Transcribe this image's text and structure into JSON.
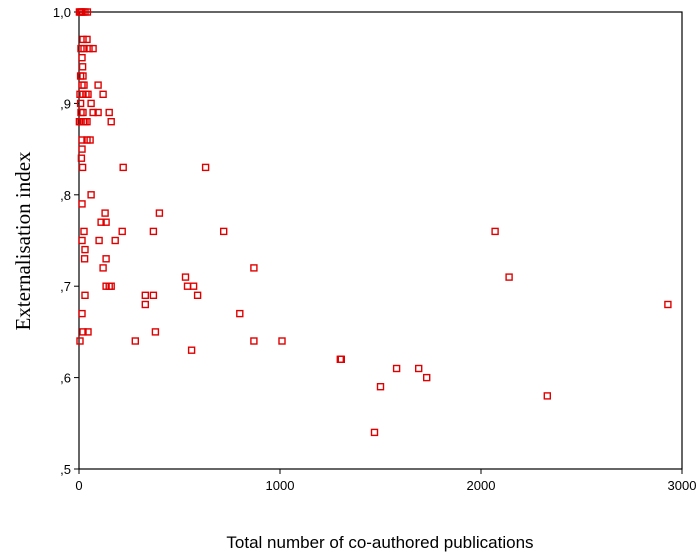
{
  "chart_data": {
    "type": "scatter",
    "xlabel": "Total number of co-authored publications",
    "ylabel": "Externalisation index",
    "xlim": [
      0,
      3000
    ],
    "ylim": [
      0.5,
      1.0
    ],
    "xticks": [
      0,
      1000,
      2000,
      3000
    ],
    "xtick_labels": [
      "0",
      "1000",
      "2000",
      "3000"
    ],
    "yticks": [
      0.5,
      0.6,
      0.7,
      0.8,
      0.9,
      1.0
    ],
    "ytick_labels": [
      ",5",
      ",6",
      ",7",
      ",8",
      ",9",
      "1,0"
    ],
    "grid": false,
    "marker": "open-square",
    "marker_color": "#e00000",
    "points": [
      [
        2,
        1.0
      ],
      [
        6,
        1.0
      ],
      [
        12,
        1.0
      ],
      [
        20,
        1.0
      ],
      [
        30,
        1.0
      ],
      [
        42,
        1.0
      ],
      [
        20,
        0.97
      ],
      [
        40,
        0.97
      ],
      [
        10,
        0.96
      ],
      [
        25,
        0.96
      ],
      [
        50,
        0.96
      ],
      [
        70,
        0.96
      ],
      [
        15,
        0.95
      ],
      [
        18,
        0.94
      ],
      [
        8,
        0.93
      ],
      [
        20,
        0.93
      ],
      [
        15,
        0.92
      ],
      [
        25,
        0.92
      ],
      [
        95,
        0.92
      ],
      [
        5,
        0.91
      ],
      [
        20,
        0.91
      ],
      [
        35,
        0.91
      ],
      [
        45,
        0.91
      ],
      [
        120,
        0.91
      ],
      [
        8,
        0.9
      ],
      [
        60,
        0.9
      ],
      [
        10,
        0.89
      ],
      [
        20,
        0.89
      ],
      [
        70,
        0.89
      ],
      [
        95,
        0.89
      ],
      [
        150,
        0.89
      ],
      [
        2,
        0.88
      ],
      [
        10,
        0.88
      ],
      [
        22,
        0.88
      ],
      [
        30,
        0.88
      ],
      [
        40,
        0.88
      ],
      [
        160,
        0.88
      ],
      [
        15,
        0.86
      ],
      [
        40,
        0.86
      ],
      [
        55,
        0.86
      ],
      [
        15,
        0.85
      ],
      [
        12,
        0.84
      ],
      [
        18,
        0.83
      ],
      [
        220,
        0.83
      ],
      [
        630,
        0.83
      ],
      [
        60,
        0.8
      ],
      [
        15,
        0.79
      ],
      [
        130,
        0.78
      ],
      [
        400,
        0.78
      ],
      [
        110,
        0.77
      ],
      [
        135,
        0.77
      ],
      [
        25,
        0.76
      ],
      [
        215,
        0.76
      ],
      [
        370,
        0.76
      ],
      [
        720,
        0.76
      ],
      [
        2070,
        0.76
      ],
      [
        15,
        0.75
      ],
      [
        100,
        0.75
      ],
      [
        180,
        0.75
      ],
      [
        30,
        0.74
      ],
      [
        28,
        0.73
      ],
      [
        135,
        0.73
      ],
      [
        120,
        0.72
      ],
      [
        870,
        0.72
      ],
      [
        530,
        0.71
      ],
      [
        2140,
        0.71
      ],
      [
        135,
        0.7
      ],
      [
        150,
        0.7
      ],
      [
        160,
        0.7
      ],
      [
        540,
        0.7
      ],
      [
        570,
        0.7
      ],
      [
        30,
        0.69
      ],
      [
        330,
        0.69
      ],
      [
        370,
        0.69
      ],
      [
        590,
        0.69
      ],
      [
        330,
        0.68
      ],
      [
        2930,
        0.68
      ],
      [
        15,
        0.67
      ],
      [
        800,
        0.67
      ],
      [
        20,
        0.65
      ],
      [
        45,
        0.65
      ],
      [
        380,
        0.65
      ],
      [
        5,
        0.64
      ],
      [
        280,
        0.64
      ],
      [
        870,
        0.64
      ],
      [
        1010,
        0.64
      ],
      [
        560,
        0.63
      ],
      [
        1300,
        0.62
      ],
      [
        1305,
        0.62
      ],
      [
        1580,
        0.61
      ],
      [
        1690,
        0.61
      ],
      [
        1730,
        0.6
      ],
      [
        1500,
        0.59
      ],
      [
        2330,
        0.58
      ],
      [
        1470,
        0.54
      ]
    ]
  }
}
